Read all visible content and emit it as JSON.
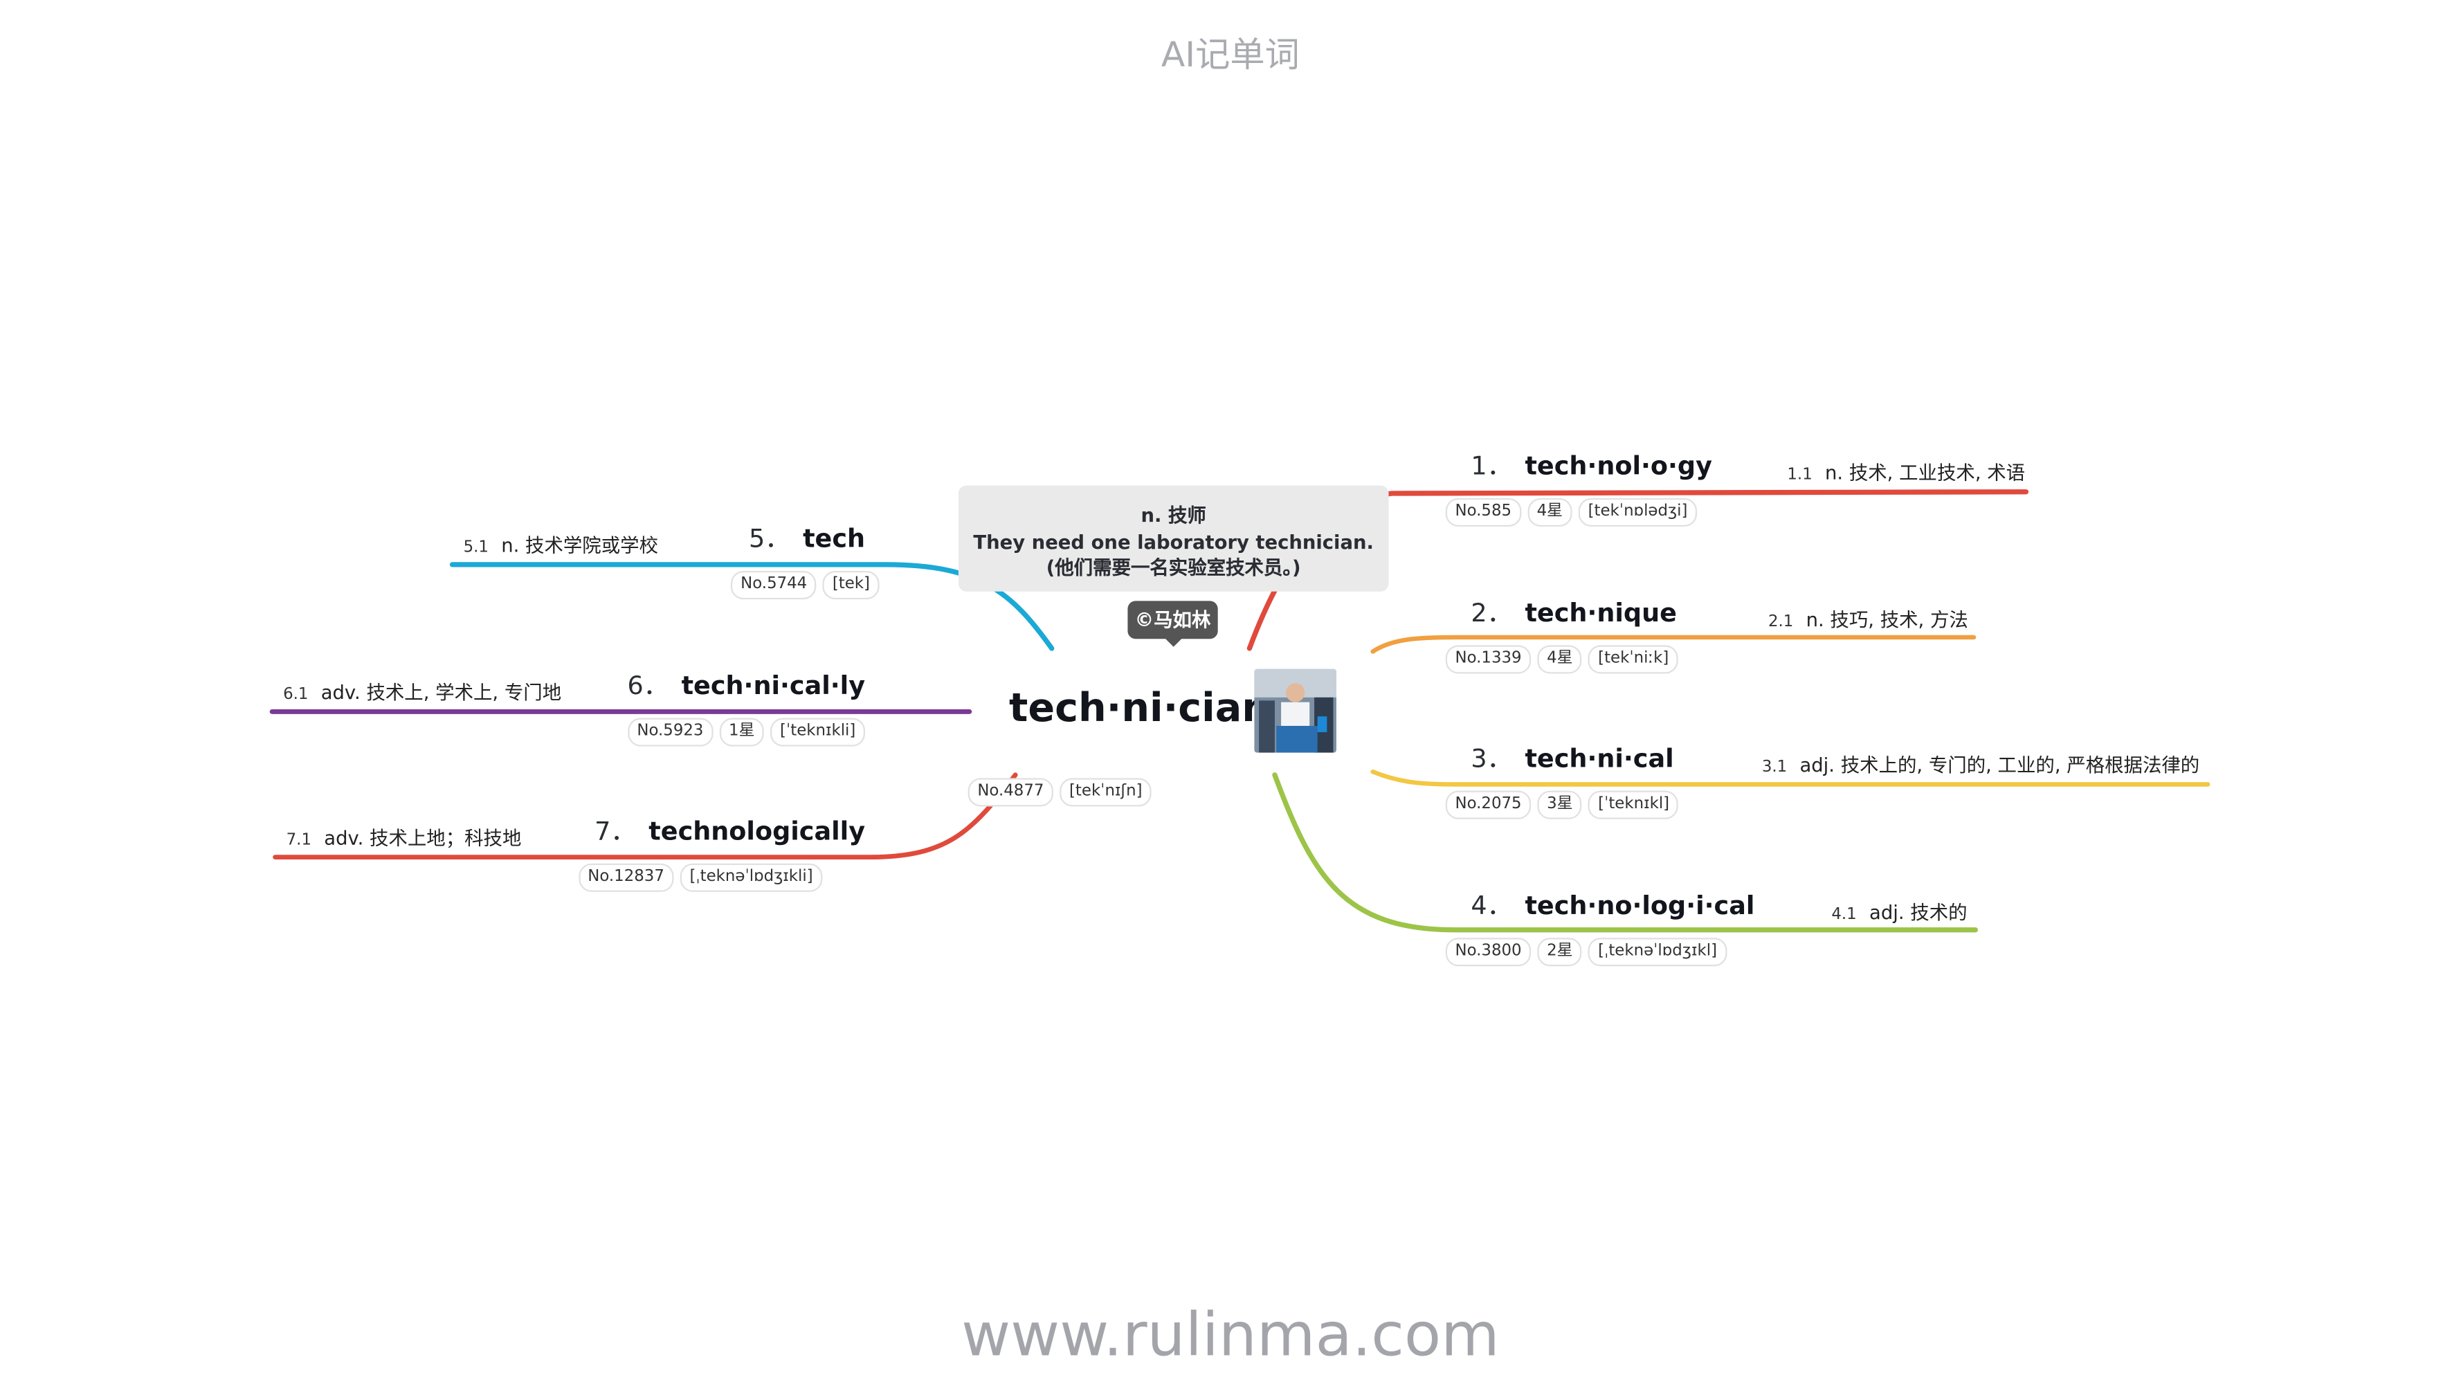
{
  "header": "AI记单词",
  "footer": "www.rulinma.com",
  "center": {
    "word": "tech·ni·cian",
    "no": "No.4877",
    "phonetic": "[tekˈnɪʃn]",
    "meaning": "n. 技师",
    "example": "They need one laboratory technician. (他们需要一名实验室技术员。)",
    "author": "©马如林"
  },
  "branches": [
    {
      "num": "1．",
      "word": "tech·nol·o·gy",
      "def_index": "1.1",
      "def": "n. 技术, 工业技术, 术语",
      "tags": [
        "No.585",
        "4星",
        "[tekˈnɒlədʒi]"
      ],
      "color": "#e04a3c"
    },
    {
      "num": "2．",
      "word": "tech·nique",
      "def_index": "2.1",
      "def": "n. 技巧, 技术, 方法",
      "tags": [
        "No.1339",
        "4星",
        "[tekˈniːk]"
      ],
      "color": "#f0a040"
    },
    {
      "num": "3．",
      "word": "tech·ni·cal",
      "def_index": "3.1",
      "def": "adj. 技术上的, 专门的, 工业的, 严格根据法律的",
      "tags": [
        "No.2075",
        "3星",
        "[ˈteknɪkl]"
      ],
      "color": "#f2c744"
    },
    {
      "num": "4．",
      "word": "tech·no·log·i·cal",
      "def_index": "4.1",
      "def": "adj. 技术的",
      "tags": [
        "No.3800",
        "2星",
        "[ˌteknəˈlɒdʒɪkl]"
      ],
      "color": "#9cc448"
    },
    {
      "num": "5．",
      "word": "tech",
      "def_index": "5.1",
      "def": "n. 技术学院或学校",
      "tags": [
        "No.5744",
        "[tek]"
      ],
      "color": "#1ba9d6"
    },
    {
      "num": "6．",
      "word": "tech·ni·cal·ly",
      "def_index": "6.1",
      "def": "adv. 技术上, 学术上, 专门地",
      "tags": [
        "No.5923",
        "1星",
        "[ˈteknɪkli]"
      ],
      "color": "#7b3a97"
    },
    {
      "num": "7．",
      "word": "technologically",
      "def_index": "7.1",
      "def": "adv. 技术上地；科技地",
      "tags": [
        "No.12837",
        "[ˌteknəˈlɒdʒɪkli]"
      ],
      "color": "#e04a3c"
    }
  ]
}
